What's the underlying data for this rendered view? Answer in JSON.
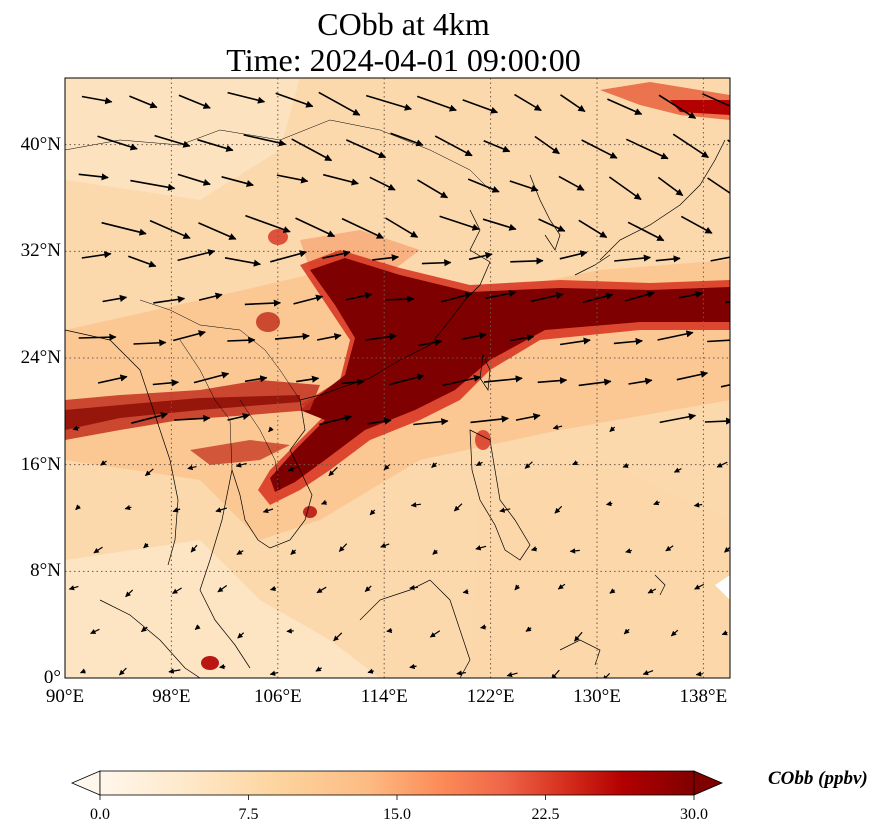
{
  "title": {
    "line1": "CObb at 4km",
    "line2": "Time: 2024-04-01 09:00:00"
  },
  "map": {
    "lon_range": [
      90,
      140
    ],
    "lat_range": [
      0,
      45
    ],
    "lon_ticks": [
      {
        "value": 90,
        "label": "90°E"
      },
      {
        "value": 98,
        "label": "98°E"
      },
      {
        "value": 106,
        "label": "106°E"
      },
      {
        "value": 114,
        "label": "114°E"
      },
      {
        "value": 122,
        "label": "122°E"
      },
      {
        "value": 130,
        "label": "130°E"
      },
      {
        "value": 138,
        "label": "138°E"
      }
    ],
    "lat_ticks": [
      {
        "value": 0,
        "label": "0°"
      },
      {
        "value": 8,
        "label": "8°N"
      },
      {
        "value": 16,
        "label": "16°N"
      },
      {
        "value": 24,
        "label": "24°N"
      },
      {
        "value": 32,
        "label": "32°N"
      },
      {
        "value": 40,
        "label": "40°N"
      }
    ],
    "background_color": "#fbd9ad",
    "plume_color": "#7f0000",
    "plume_edge_color": "#d7301f",
    "grid": "dotted",
    "wind_vectors": "shown"
  },
  "colorbar": {
    "label": "CObb (ppbv)",
    "ticks": [
      "0.0",
      "7.5",
      "15.0",
      "22.5",
      "30.0"
    ],
    "min": 0,
    "max": 30,
    "extend": "both",
    "colors": [
      "#fff7ec",
      "#fee8c8",
      "#fdd49e",
      "#fdbb84",
      "#fc8d59",
      "#ef6548",
      "#d7301f",
      "#b30000",
      "#7f0000"
    ]
  }
}
